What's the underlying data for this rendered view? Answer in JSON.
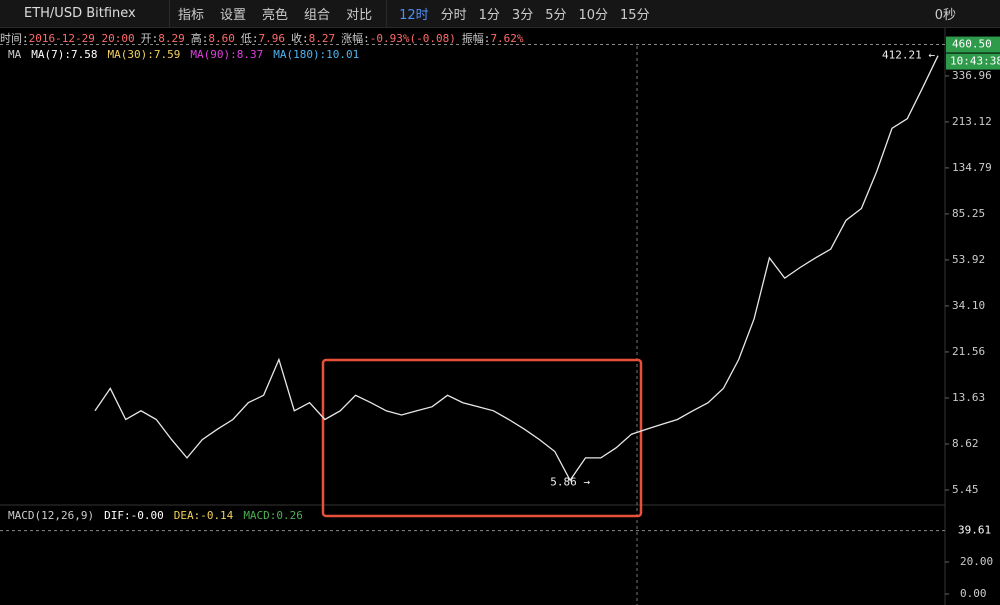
{
  "toolbar": {
    "symbol": "ETH/USD Bitfinex",
    "items": [
      "指标",
      "设置",
      "亮色",
      "组合",
      "对比"
    ],
    "intervals": [
      "12时",
      "分时",
      "1分",
      "3分",
      "5分",
      "10分",
      "15分"
    ],
    "timer": "0秒"
  },
  "info": [
    {
      "label": "时间:",
      "value": "2016-12-29 20:00"
    },
    {
      "label": "开:",
      "value": "8.29"
    },
    {
      "label": "高:",
      "value": "8.60"
    },
    {
      "label": "低:",
      "value": "7.96"
    },
    {
      "label": "收:",
      "value": "8.27"
    },
    {
      "label": "涨幅:",
      "value": "-0.93%(-0.08)"
    },
    {
      "label": "振幅:",
      "value": "7.62%"
    }
  ],
  "ma_legend": [
    {
      "text": "MA",
      "color": "#cccccc"
    },
    {
      "text": "MA(7):7.58",
      "color": "#ffffff"
    },
    {
      "text": "MA(30):7.59",
      "color": "#f2d15b"
    },
    {
      "text": "MA(90):8.37",
      "color": "#e040e0"
    },
    {
      "text": "MA(180):10.01",
      "color": "#4fb3f0"
    }
  ],
  "price_axis": {
    "scale": "log",
    "ticks": [
      336.96,
      213.12,
      134.79,
      85.25,
      53.92,
      {
        "value": 34.1,
        "label": "34.10"
      },
      21.56,
      13.63,
      8.62,
      5.45
    ],
    "current": {
      "value": 460.5,
      "label": "460.50"
    },
    "countdown": "10:43:38"
  },
  "annotations": [
    {
      "value": 412.21,
      "label": "412.21 ←"
    },
    {
      "value": 5.86,
      "label": "5.86 →"
    }
  ],
  "close": [
    12,
    15,
    11,
    12,
    11,
    9,
    7.5,
    9,
    10,
    11,
    13,
    14,
    20,
    12,
    13,
    11,
    12,
    14,
    13,
    12,
    11.5,
    12,
    12.5,
    14,
    13,
    12.5,
    12,
    11,
    10,
    9,
    8,
    6,
    7.5,
    7.5,
    8.3,
    9.5,
    10,
    10.5,
    11,
    12,
    13,
    15,
    20,
    30,
    55,
    45,
    50,
    55,
    60,
    80,
    90,
    130,
    200,
    220,
    300,
    412
  ],
  "macd_legend": [
    {
      "text": "MACD(12,26,9)",
      "color": "#cccccc"
    },
    {
      "text": "DIF:-0.00",
      "color": "#ffffff"
    },
    {
      "text": "DEA:-0.14",
      "color": "#f2d15b"
    },
    {
      "text": "MACD:0.26",
      "color": "#4caf50"
    }
  ],
  "macd_axis": {
    "ticks": [
      {
        "value": 20,
        "label": "20.00"
      },
      {
        "value": 0,
        "label": "0.00"
      }
    ],
    "current": 39.61
  }
}
